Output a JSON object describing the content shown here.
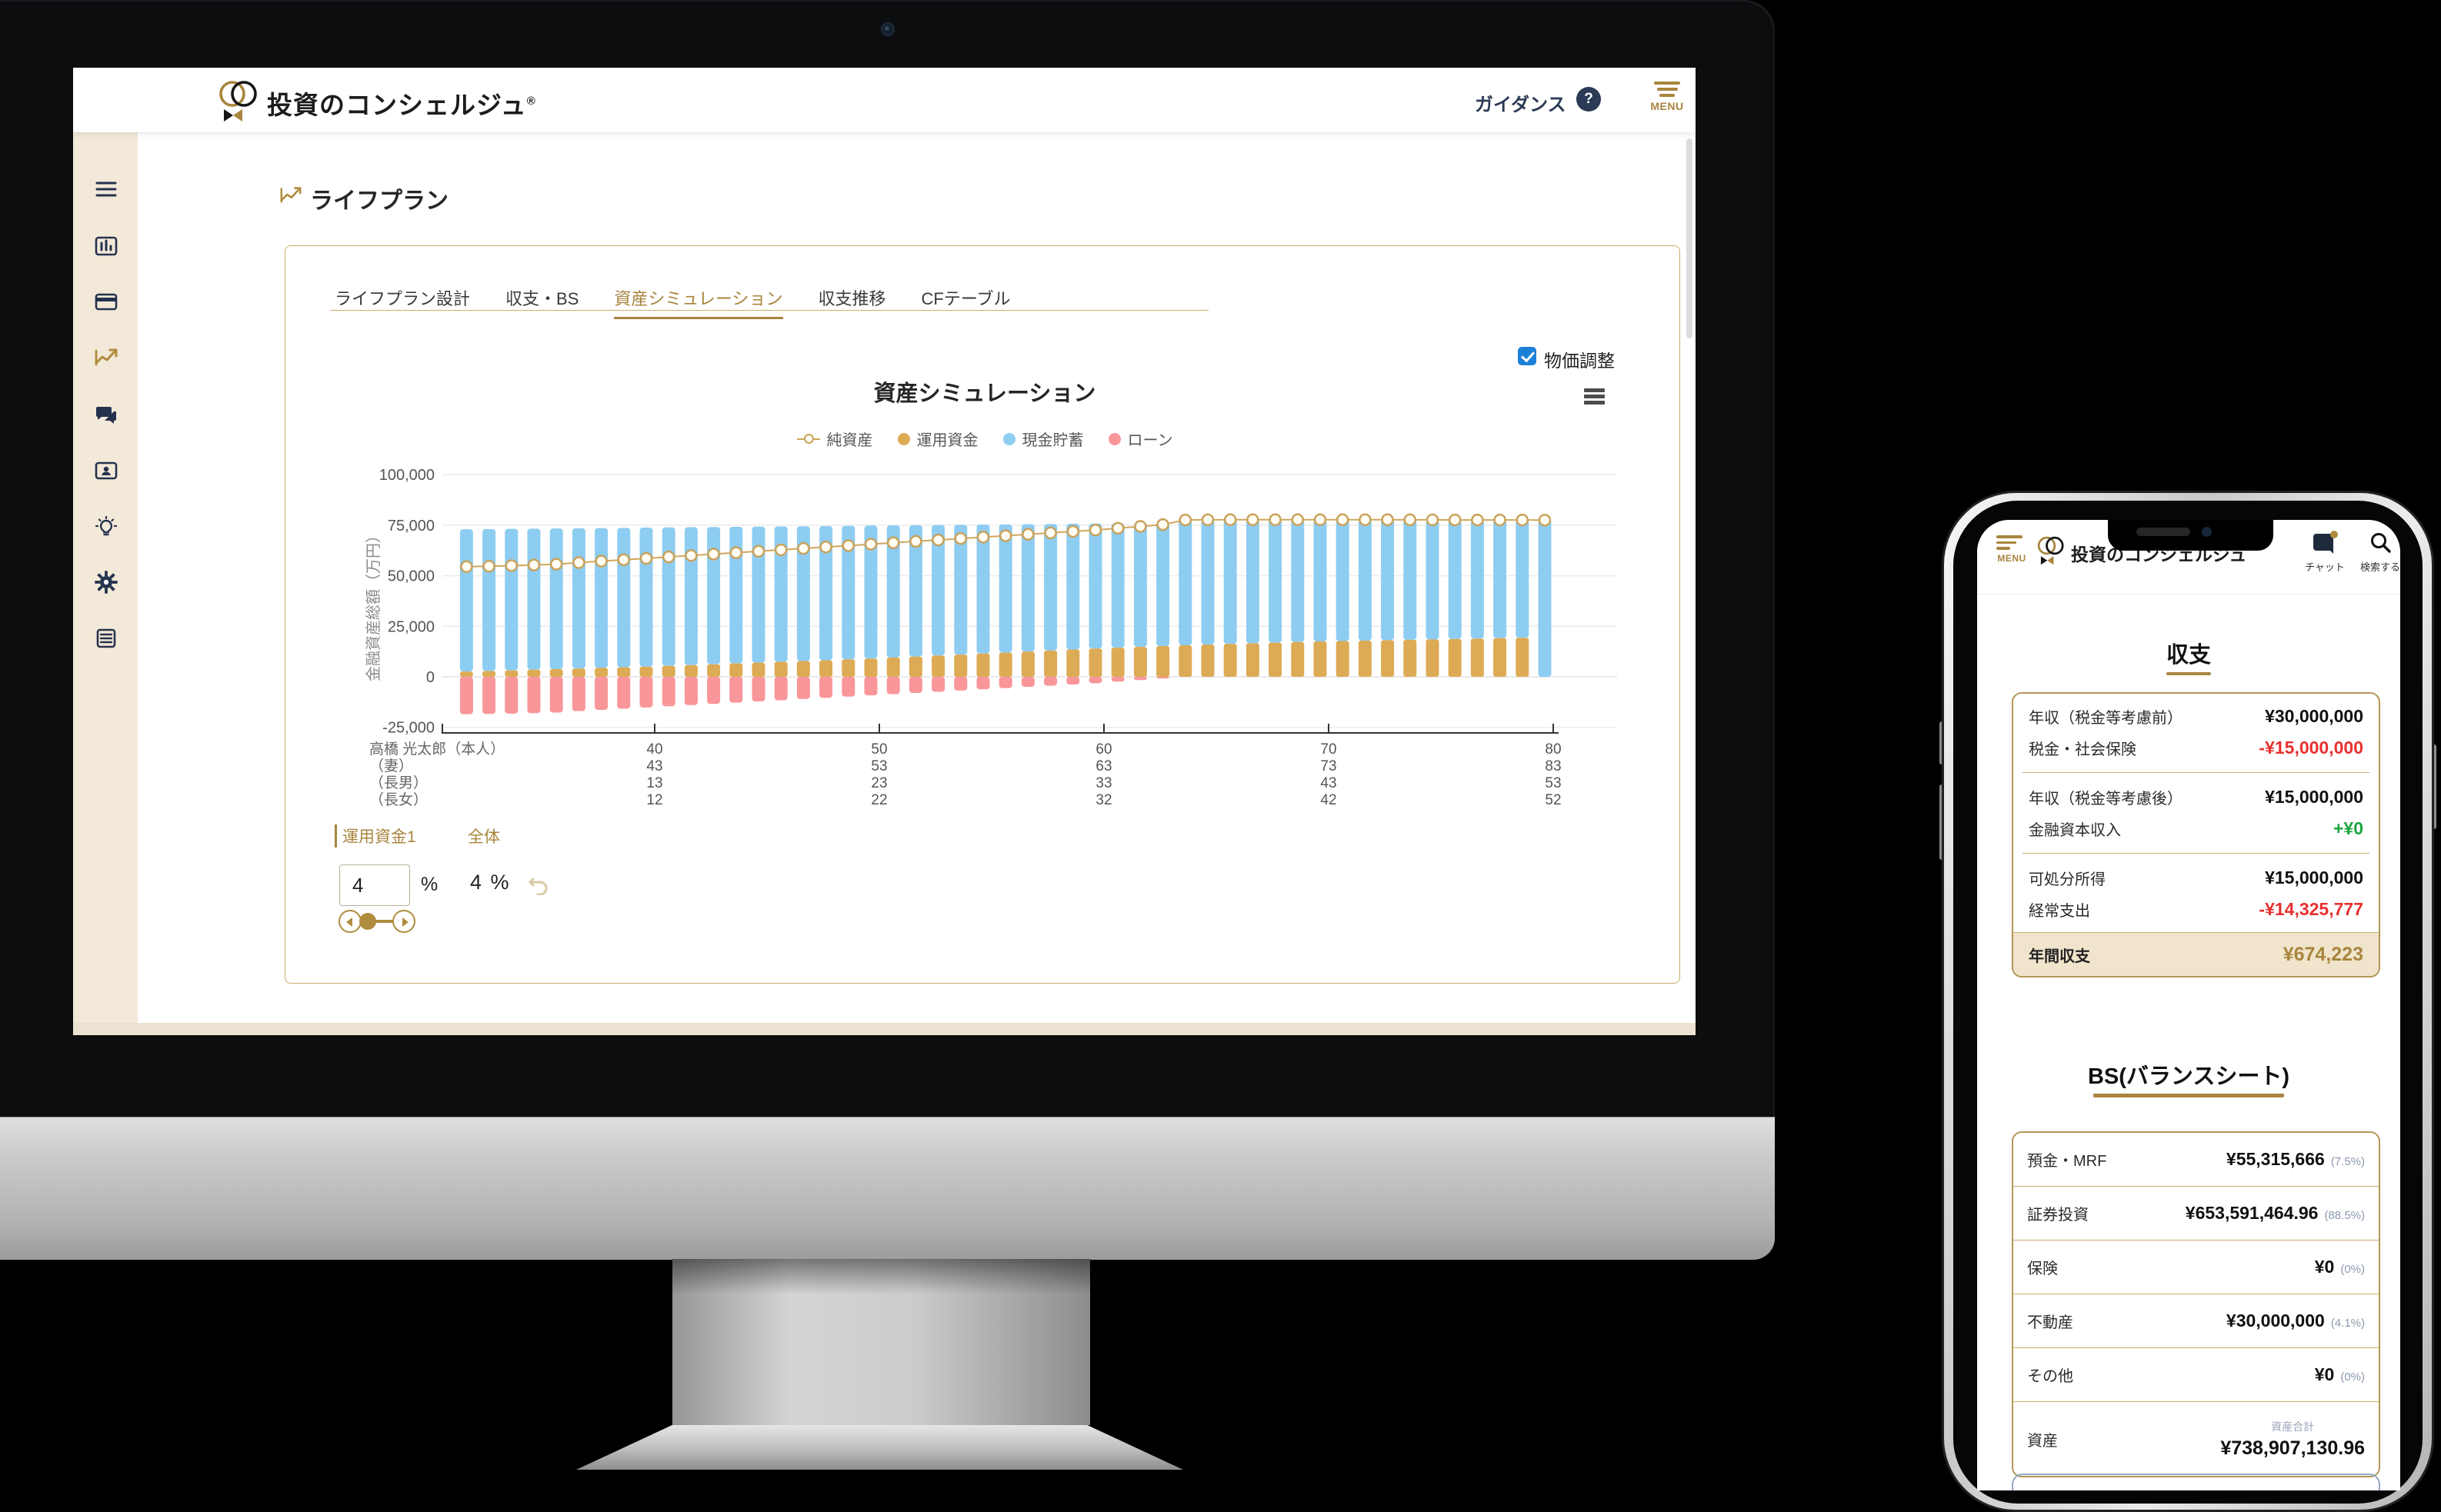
{
  "colors": {
    "accent_gold": "#a8853e",
    "navy": "#2b3a55",
    "checkbox_blue": "#1d80d8",
    "negative_red": "#e8312f",
    "positive_green": "#1da53f",
    "bar_cash": "#8ecdf2",
    "bar_fund": "#ddab55",
    "bar_loan": "#f9969a",
    "net_line": "#d0a75c"
  },
  "desktop": {
    "header": {
      "brand": "投資のコンシェルジュ",
      "reg_mark": "®",
      "guidance": "ガイダンス",
      "help": "?",
      "menu": "MENU"
    },
    "sidebar_icons": [
      "menu-icon",
      "bar-chart-icon",
      "credit-card-icon",
      "line-chart-icon",
      "chat-icon",
      "id-card-icon",
      "lightbulb-icon",
      "gear-icon",
      "document-icon"
    ],
    "page_title": "ライフプラン",
    "tabs": {
      "items": [
        "ライフプラン設計",
        "収支・BS",
        "資産シミュレーション",
        "収支推移",
        "CFテーブル"
      ],
      "active_index": 2
    },
    "price_adjust_label": "物価調整",
    "price_adjust_checked": true,
    "controls": {
      "fund_label": "運用資金1",
      "overall_label": "全体",
      "fund_value": "4",
      "percent_suffix": "%",
      "overall_value": "4 %"
    }
  },
  "chart_data": {
    "type": "stacked-bar+line",
    "title": "資産シミュレーション",
    "ylabel": "金融資産総額（万円）",
    "ylim": [
      -25000,
      100000
    ],
    "yticks": [
      100000,
      75000,
      50000,
      25000,
      0,
      -25000
    ],
    "ytick_labels": [
      "100,000",
      "75,000",
      "50,000",
      "25,000",
      "0",
      "-25,000"
    ],
    "ages": [
      32,
      33,
      34,
      35,
      36,
      37,
      38,
      39,
      40,
      41,
      42,
      43,
      44,
      45,
      46,
      47,
      48,
      49,
      50,
      51,
      52,
      53,
      54,
      55,
      56,
      57,
      58,
      59,
      60,
      61,
      62,
      63,
      64,
      65,
      66,
      67,
      68,
      69,
      70,
      71,
      72,
      73,
      74,
      75,
      76,
      77,
      78,
      79,
      80
    ],
    "xticks": [
      40,
      50,
      60,
      70,
      80
    ],
    "series": [
      {
        "name": "現金貯蓄",
        "color": "#8ecdf2",
        "values": [
          70400,
          70200,
          70000,
          69800,
          69600,
          69400,
          69200,
          69000,
          68800,
          68500,
          68200,
          67900,
          67600,
          67300,
          67000,
          66700,
          66400,
          66100,
          65800,
          65400,
          65000,
          64600,
          64200,
          63800,
          63400,
          63000,
          62600,
          62200,
          61800,
          61500,
          61200,
          60900,
          62000,
          61650,
          61400,
          61100,
          60800,
          60500,
          60200,
          60000,
          59800,
          59600,
          59350,
          59150,
          58900,
          58700,
          58500,
          58300,
          77500
        ]
      },
      {
        "name": "運用資金",
        "color": "#ddab55",
        "values": [
          2600,
          2900,
          3200,
          3500,
          3800,
          4100,
          4400,
          4700,
          5000,
          5400,
          5800,
          6200,
          6600,
          7000,
          7400,
          7800,
          8200,
          8600,
          9000,
          9500,
          10000,
          10500,
          11000,
          11500,
          12000,
          12500,
          13000,
          13500,
          14000,
          14400,
          14800,
          15200,
          15600,
          16000,
          16300,
          16600,
          16900,
          17200,
          17500,
          17700,
          17900,
          18100,
          18300,
          18500,
          18700,
          18900,
          19100,
          19300,
          0
        ]
      },
      {
        "name": "ローン",
        "color": "#f9969a",
        "values": [
          -18500,
          -18400,
          -18200,
          -18000,
          -17700,
          -17000,
          -16400,
          -15800,
          -15200,
          -14600,
          -14000,
          -13400,
          -12800,
          -12200,
          -11600,
          -11000,
          -10400,
          -9800,
          -9200,
          -8600,
          -8000,
          -7400,
          -6800,
          -6200,
          -5600,
          -5000,
          -4400,
          -3800,
          -3200,
          -2400,
          -1600,
          -800,
          0,
          0,
          0,
          0,
          0,
          0,
          0,
          0,
          0,
          0,
          0,
          0,
          0,
          0,
          0,
          0,
          0
        ]
      }
    ],
    "line": {
      "name": "純資産",
      "color": "#d0a75c",
      "values": [
        54500,
        54700,
        55000,
        55300,
        55700,
        56500,
        57200,
        57900,
        58600,
        59300,
        60000,
        60700,
        61400,
        62100,
        62800,
        63500,
        64200,
        64900,
        65600,
        66300,
        67000,
        67700,
        68400,
        69100,
        69800,
        70500,
        71200,
        71900,
        72600,
        73500,
        74400,
        75300,
        77600,
        77650,
        77700,
        77700,
        77700,
        77700,
        77700,
        77700,
        77700,
        77700,
        77650,
        77650,
        77600,
        77600,
        77600,
        77600,
        77500
      ]
    },
    "legend": [
      {
        "label": "純資産",
        "marker": "line-circle",
        "color": "#d0a75c"
      },
      {
        "label": "運用資金",
        "marker": "dot",
        "color": "#ddab55"
      },
      {
        "label": "現金貯蓄",
        "marker": "dot",
        "color": "#8ecdf2"
      },
      {
        "label": "ローン",
        "marker": "dot",
        "color": "#f9969a"
      }
    ],
    "legend_position": "top",
    "grid": true,
    "family_rows": [
      {
        "label": "高橋 光太郎（本人）",
        "ages_at_ticks": [
          "40",
          "50",
          "60",
          "70",
          "80"
        ]
      },
      {
        "label": "（妻）",
        "ages_at_ticks": [
          "43",
          "53",
          "63",
          "73",
          "83"
        ]
      },
      {
        "label": "（長男）",
        "ages_at_ticks": [
          "13",
          "23",
          "33",
          "43",
          "53"
        ]
      },
      {
        "label": "（長女）",
        "ages_at_ticks": [
          "12",
          "22",
          "32",
          "42",
          "52"
        ]
      }
    ]
  },
  "phone": {
    "menu_label": "MENU",
    "brand": "投資のコンシェルジュ",
    "chat_label": "チャット",
    "search_label": "検索する",
    "income": {
      "title": "収支",
      "groups": [
        {
          "rows": [
            {
              "label": "年収（税金等考慮前）",
              "value": "¥30,000,000",
              "tone": "normal"
            },
            {
              "label": "税金・社会保険",
              "value": "-¥15,000,000",
              "tone": "negative"
            }
          ]
        },
        {
          "rows": [
            {
              "label": "年収（税金等考慮後）",
              "value": "¥15,000,000",
              "tone": "normal"
            },
            {
              "label": "金融資本収入",
              "value": "+¥0",
              "tone": "positive"
            }
          ]
        },
        {
          "rows": [
            {
              "label": "可処分所得",
              "value": "¥15,000,000",
              "tone": "normal"
            },
            {
              "label": "経常支出",
              "value": "-¥14,325,777",
              "tone": "negative"
            }
          ]
        }
      ],
      "total": {
        "label": "年間収支",
        "value": "¥674,223"
      }
    },
    "bs": {
      "title": "BS(バランスシート)",
      "rows": [
        {
          "label": "預金・MRF",
          "value": "¥55,315,666",
          "pct": "(7.5%)"
        },
        {
          "label": "証券投資",
          "value": "¥653,591,464.96",
          "pct": "(88.5%)"
        },
        {
          "label": "保険",
          "value": "¥0",
          "pct": "(0%)"
        },
        {
          "label": "不動産",
          "value": "¥30,000,000",
          "pct": "(4.1%)"
        },
        {
          "label": "その他",
          "value": "¥0",
          "pct": "(0%)"
        }
      ],
      "total": {
        "sub": "資産合計",
        "label": "資産",
        "value": "¥738,907,130.96"
      }
    }
  }
}
